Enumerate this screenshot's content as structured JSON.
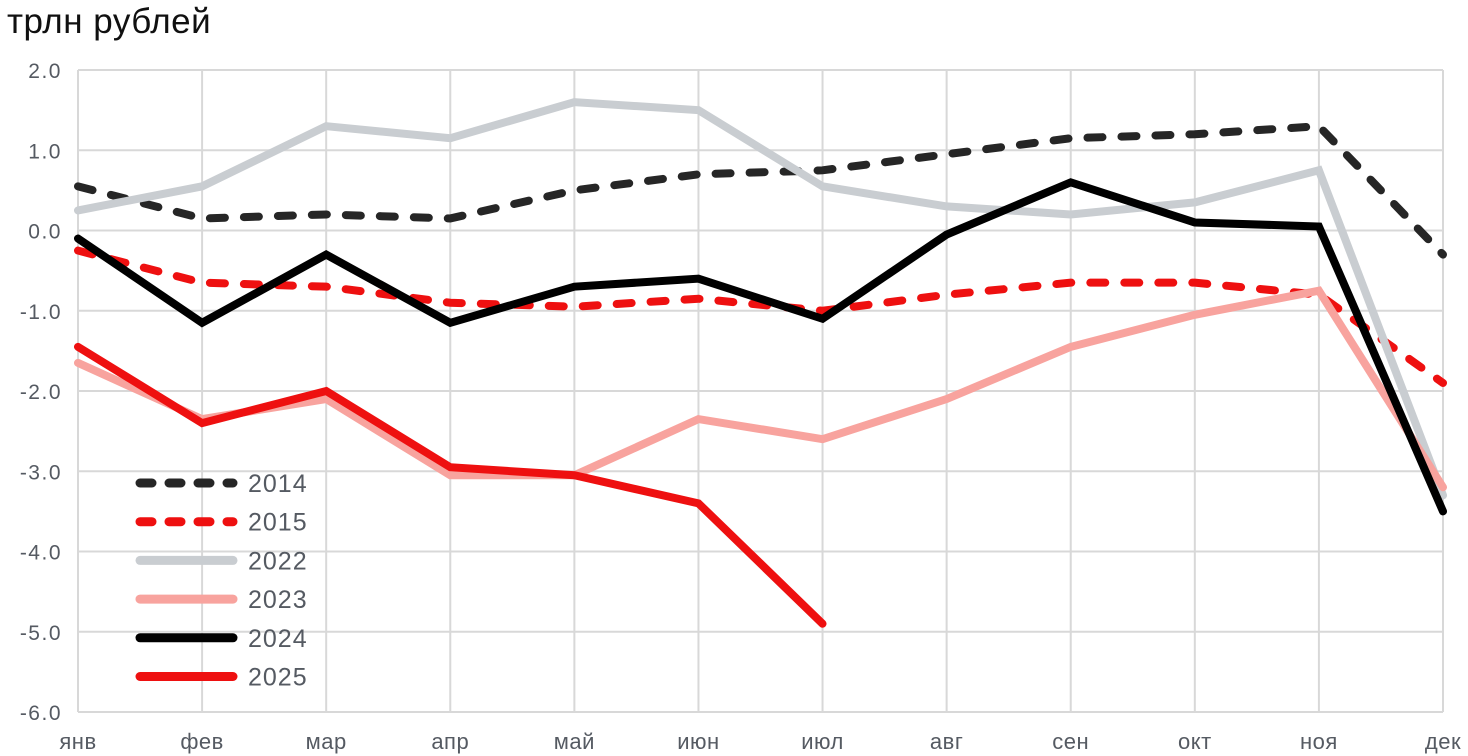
{
  "title": "трлн рублей",
  "chart_data": {
    "type": "line",
    "title": "трлн рублей",
    "xlabel": "",
    "ylabel": "трлн рублей",
    "grid": true,
    "legend_position": "inside-bottom-left",
    "ylim": [
      -6.0,
      2.0
    ],
    "categories": [
      "янв",
      "фев",
      "мар",
      "апр",
      "май",
      "июн",
      "июл",
      "авг",
      "сен",
      "окт",
      "ноя",
      "дек"
    ],
    "y_ticks": [
      2.0,
      1.0,
      0.0,
      -1.0,
      -2.0,
      -3.0,
      -4.0,
      -5.0,
      -6.0
    ],
    "y_tick_labels": [
      "2.0",
      "1.0",
      "0.0",
      "-1.0",
      "-2.0",
      "-3.0",
      "-4.0",
      "-5.0",
      "-6.0"
    ],
    "series": [
      {
        "name": "2014",
        "color": "#262626",
        "dash": true,
        "values": [
          0.55,
          0.15,
          0.2,
          0.15,
          0.5,
          0.7,
          0.75,
          0.95,
          1.15,
          1.2,
          1.3,
          -0.3
        ]
      },
      {
        "name": "2015",
        "color": "#ee1010",
        "dash": true,
        "values": [
          -0.25,
          -0.65,
          -0.7,
          -0.9,
          -0.95,
          -0.85,
          -1.0,
          -0.8,
          -0.65,
          -0.65,
          -0.8,
          -1.9
        ]
      },
      {
        "name": "2022",
        "color": "#c9cdd1",
        "dash": false,
        "values": [
          0.25,
          0.55,
          1.3,
          1.15,
          1.6,
          1.5,
          0.55,
          0.3,
          0.2,
          0.35,
          0.75,
          -3.3
        ]
      },
      {
        "name": "2023",
        "color": "#f8a39e",
        "dash": false,
        "values": [
          -1.65,
          -2.35,
          -2.1,
          -3.05,
          -3.05,
          -2.35,
          -2.6,
          -2.1,
          -1.45,
          -1.05,
          -0.75,
          -3.2
        ]
      },
      {
        "name": "2024",
        "color": "#000000",
        "dash": false,
        "values": [
          -0.1,
          -1.15,
          -0.3,
          -1.15,
          -0.7,
          -0.6,
          -1.1,
          -0.05,
          0.6,
          0.1,
          0.05,
          -3.5
        ]
      },
      {
        "name": "2025",
        "color": "#ee1010",
        "dash": false,
        "values": [
          -1.45,
          -2.4,
          -2.0,
          -2.95,
          -3.05,
          -3.4,
          -4.9,
          null,
          null,
          null,
          null,
          null
        ]
      }
    ]
  },
  "colors": {
    "grid": "#d8d8d8",
    "axis_text": "#555a62",
    "title_text": "#101010",
    "background": "#ffffff"
  }
}
